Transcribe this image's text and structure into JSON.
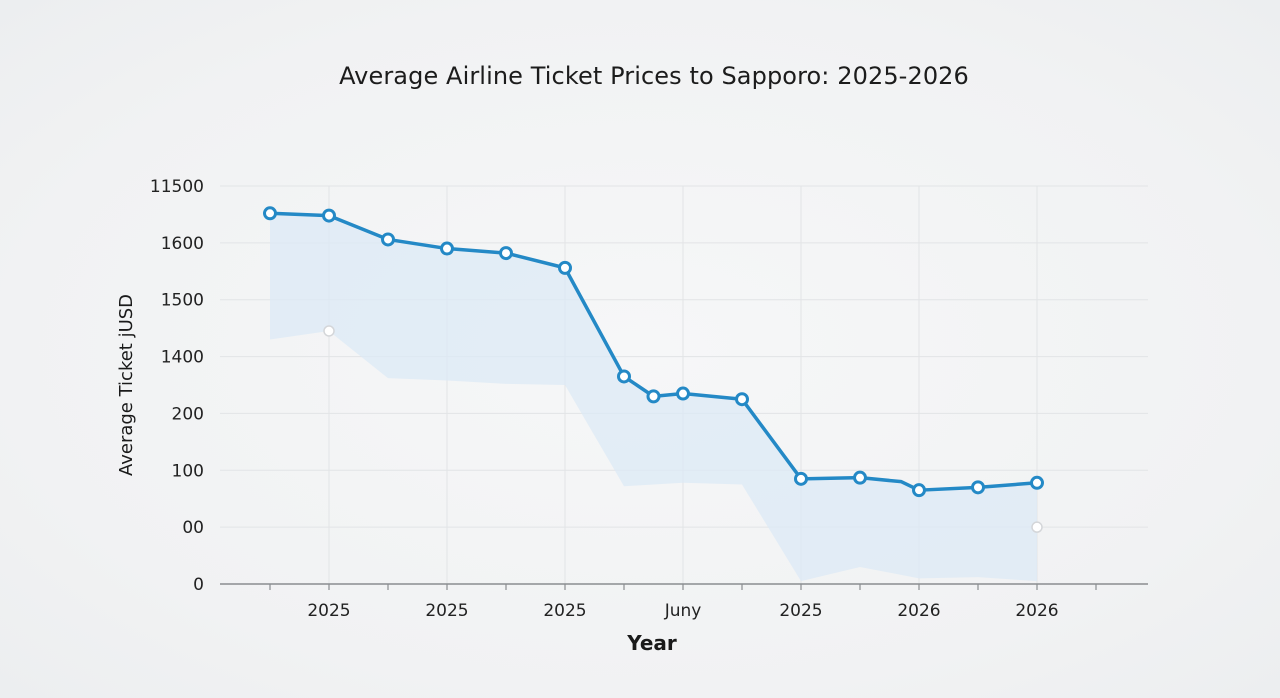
{
  "chart_data": {
    "type": "line",
    "title": "Average Airline Ticket Prices to Sapporo: 2025-2026",
    "xlabel": "Year",
    "ylabel": "Average Ticket jUSD",
    "y_tick_labels": [
      "0",
      "00",
      "100",
      "200",
      "1400",
      "1500",
      "1600",
      "11500"
    ],
    "x_tick_labels": [
      "2025",
      "2025",
      "2025",
      "Juny",
      "2025",
      "2026",
      "2026"
    ],
    "grid": true,
    "legend": "none",
    "ylim": [
      0,
      7
    ],
    "series": [
      {
        "values": [
          [
            0,
            6.52
          ],
          [
            1,
            6.48
          ],
          [
            2,
            6.06
          ],
          [
            3,
            5.9
          ],
          [
            4,
            5.82
          ],
          [
            5,
            5.56
          ],
          [
            6,
            3.65
          ],
          [
            6.5,
            3.3
          ],
          [
            7,
            3.35
          ],
          [
            8,
            3.25
          ],
          [
            9,
            1.85
          ],
          [
            10,
            1.87
          ],
          [
            10.7,
            1.8
          ],
          [
            11,
            1.65
          ],
          [
            12,
            1.7
          ],
          [
            13,
            1.78
          ]
        ]
      }
    ],
    "band": {
      "upper": [
        [
          0,
          6.52
        ],
        [
          1,
          6.48
        ],
        [
          2,
          6.06
        ],
        [
          3,
          5.9
        ],
        [
          4,
          5.82
        ],
        [
          5,
          5.56
        ],
        [
          6,
          3.65
        ],
        [
          6.5,
          3.3
        ],
        [
          7,
          3.35
        ],
        [
          8,
          3.25
        ],
        [
          9,
          1.85
        ],
        [
          10,
          1.87
        ],
        [
          10.7,
          1.8
        ],
        [
          11,
          1.65
        ],
        [
          12,
          1.7
        ],
        [
          13,
          1.78
        ]
      ],
      "lower": [
        [
          0,
          4.3
        ],
        [
          1,
          4.45
        ],
        [
          2,
          3.62
        ],
        [
          3,
          3.58
        ],
        [
          4,
          3.52
        ],
        [
          5,
          3.5
        ],
        [
          6,
          1.72
        ],
        [
          6.5,
          1.75
        ],
        [
          7,
          1.78
        ],
        [
          8,
          1.75
        ],
        [
          9,
          0.05
        ],
        [
          10,
          0.3
        ],
        [
          11,
          0.1
        ],
        [
          12,
          0.12
        ],
        [
          13,
          0.05
        ]
      ]
    },
    "faint_points": [
      [
        1,
        4.45
      ],
      [
        13,
        1.0
      ]
    ],
    "colors": {
      "line": "#2489c6",
      "marker_fill": "#ffffff",
      "band": "#dceaf5",
      "grid": "#e2e4e6",
      "axis": "#8a8d90"
    }
  }
}
